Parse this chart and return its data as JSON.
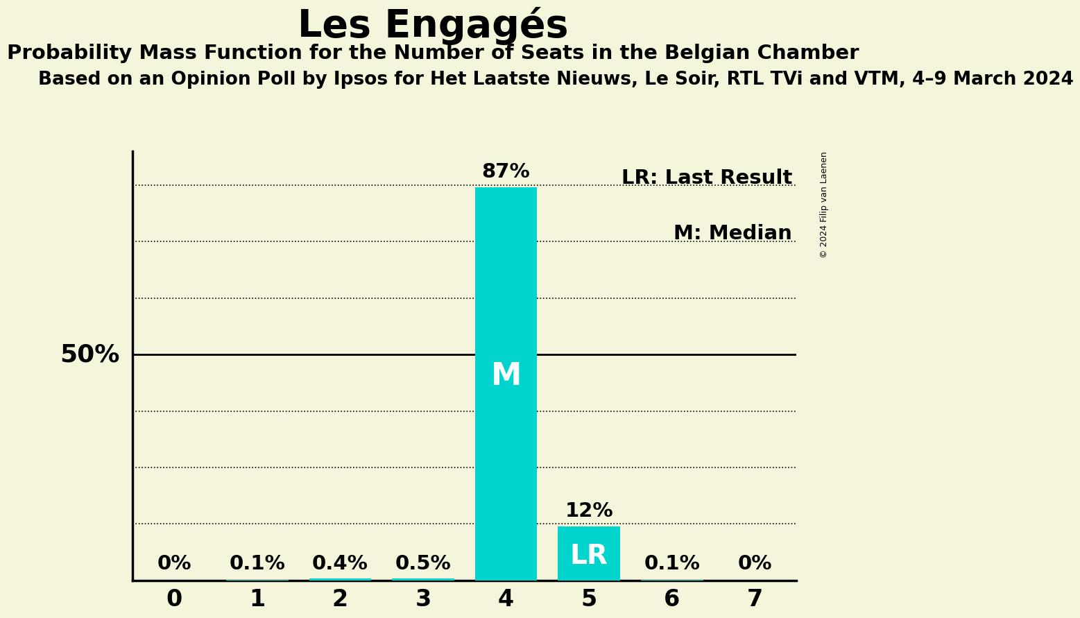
{
  "title": "Les Engagés",
  "subtitle": "Probability Mass Function for the Number of Seats in the Belgian Chamber",
  "subsubtitle": "Based on an Opinion Poll by Ipsos for Het Laatste Nieuws, Le Soir, RTL TVi and VTM, 4–9 March 2024",
  "copyright": "© 2024 Filip van Laenen",
  "categories": [
    0,
    1,
    2,
    3,
    4,
    5,
    6,
    7
  ],
  "values": [
    0.0,
    0.1,
    0.4,
    0.5,
    87.0,
    12.0,
    0.1,
    0.0
  ],
  "labels": [
    "0%",
    "0.1%",
    "0.4%",
    "0.5%",
    "87%",
    "12%",
    "0.1%",
    "0%"
  ],
  "bar_color": "#00D4CC",
  "background_color": "#F5F5DC",
  "median_index": 4,
  "lr_index": 5,
  "median_label": "M",
  "lr_label": "LR",
  "legend_lr": "LR: Last Result",
  "legend_m": "M: Median",
  "fifty_pct_label": "50%",
  "ylim": [
    0,
    95
  ],
  "yticks_dotted": [
    12.5,
    25.0,
    37.5,
    62.5,
    75.0,
    87.5
  ],
  "ytick_solid": 50.0,
  "bar_width": 0.75,
  "title_fontsize": 40,
  "subtitle_fontsize": 21,
  "subsubtitle_fontsize": 19,
  "label_fontsize": 21,
  "tick_fontsize": 24,
  "legend_fontsize": 21,
  "inbar_fontsize_m": 32,
  "inbar_fontsize_lr": 28
}
